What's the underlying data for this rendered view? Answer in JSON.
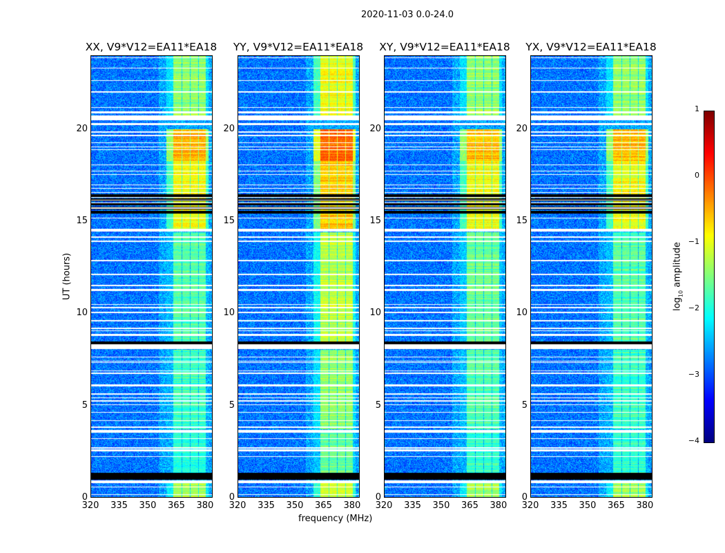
{
  "suptitle": "2020-11-03 0.0-24.0",
  "xlabel": "frequency (MHz)",
  "ylabel": "UT (hours)",
  "chart_data": {
    "type": "heatmap",
    "xlim": [
      320,
      384
    ],
    "ylim": [
      0,
      24
    ],
    "xticks": [
      "320",
      "335",
      "350",
      "365",
      "380"
    ],
    "xtick_values": [
      320,
      335,
      350,
      365,
      380
    ],
    "yticks": [
      "0",
      "5",
      "10",
      "15",
      "20"
    ],
    "ytick_values": [
      0,
      5,
      10,
      15,
      20
    ],
    "colormap": "jet",
    "colorbar": {
      "label": "log10 amplitude",
      "label_main": "log",
      "label_sub": "10",
      "label_rest": " amplitude",
      "range": [
        -4,
        1
      ],
      "ticks": [
        "1",
        "0",
        "−1",
        "−2",
        "−3",
        "−4"
      ],
      "tick_values": [
        1,
        0,
        -1,
        -2,
        -3,
        -4
      ]
    },
    "background_level": -2.8,
    "bright_subbands_mhz": [
      [
        363.5,
        367.8
      ],
      [
        368.3,
        372.2
      ],
      [
        372.8,
        376.6
      ],
      [
        377.0,
        380.6
      ]
    ],
    "flagged_white_hours": [
      [
        0.75,
        0.92
      ],
      [
        8.05,
        8.3
      ],
      [
        14.45,
        14.6
      ],
      [
        20.5,
        20.75
      ],
      [
        3.5,
        3.65
      ],
      [
        2.5,
        2.58
      ]
    ],
    "flagged_black_hours": [
      [
        0.95,
        1.3
      ],
      [
        15.35,
        16.5
      ],
      [
        8.3,
        8.45
      ]
    ],
    "panels": [
      {
        "title": "XX, V9*V12=EA11*EA18",
        "band_levels": [
          [
            0,
            0.8,
            -1.3
          ],
          [
            1.3,
            3.6,
            -1.9
          ],
          [
            3.7,
            8.0,
            -1.8
          ],
          [
            8.4,
            14.4,
            -1.7
          ],
          [
            14.6,
            18.3,
            -0.9
          ],
          [
            18.3,
            20.0,
            -0.5
          ],
          [
            20.7,
            24,
            -1.4
          ]
        ]
      },
      {
        "title": "YY, V9*V12=EA11*EA18",
        "band_levels": [
          [
            0,
            0.8,
            -1.0
          ],
          [
            1.3,
            3.6,
            -1.6
          ],
          [
            3.7,
            8.0,
            -1.4
          ],
          [
            8.4,
            14.4,
            -1.2
          ],
          [
            14.6,
            18.3,
            -0.6
          ],
          [
            18.3,
            20.0,
            -0.1
          ],
          [
            20.7,
            24,
            -0.9
          ]
        ]
      },
      {
        "title": "XY, V9*V12=EA11*EA18",
        "band_levels": [
          [
            0,
            0.8,
            -1.3
          ],
          [
            1.3,
            3.6,
            -1.9
          ],
          [
            3.7,
            8.0,
            -1.7
          ],
          [
            8.4,
            14.4,
            -1.6
          ],
          [
            14.6,
            18.3,
            -0.9
          ],
          [
            18.3,
            20.0,
            -0.5
          ],
          [
            20.7,
            24,
            -1.4
          ]
        ]
      },
      {
        "title": "YX, V9*V12=EA11*EA18",
        "band_levels": [
          [
            0,
            0.8,
            -1.3
          ],
          [
            1.3,
            3.6,
            -1.9
          ],
          [
            3.7,
            8.0,
            -1.8
          ],
          [
            8.4,
            14.4,
            -1.7
          ],
          [
            14.6,
            18.3,
            -0.9
          ],
          [
            18.3,
            20.0,
            -0.5
          ],
          [
            20.7,
            24,
            -1.4
          ]
        ]
      }
    ]
  }
}
